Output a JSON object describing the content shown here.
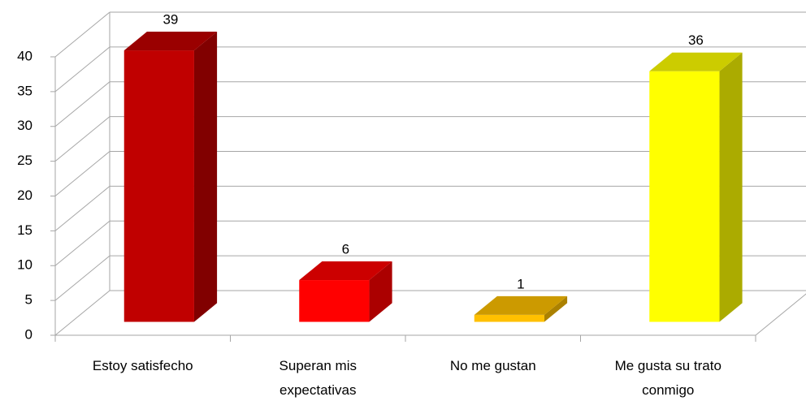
{
  "chart_data": {
    "type": "bar3d",
    "categories": [
      "Estoy satisfecho",
      "Superan mis expectativas",
      "No me gustan",
      "Me gusta su trato conmigo"
    ],
    "values": [
      39,
      6,
      1,
      36
    ],
    "colors": [
      "#c00000",
      "#ff0000",
      "#ffc000",
      "#ffff00"
    ],
    "ylim": [
      0,
      40
    ],
    "yticks": [
      0,
      5,
      10,
      15,
      20,
      25,
      30,
      35,
      40
    ],
    "grid": true
  }
}
